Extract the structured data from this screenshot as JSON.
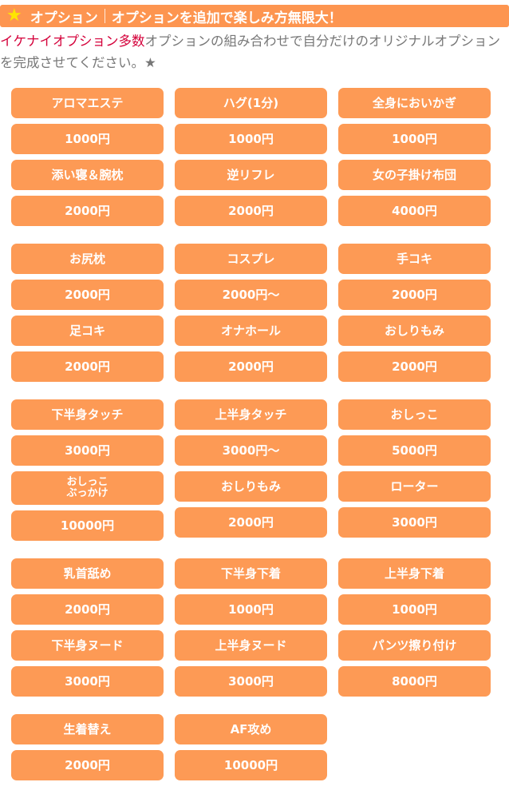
{
  "header": {
    "icon": "star-icon",
    "title": "オプション",
    "subtitle": "オプションを追加で楽しみ方無限大！"
  },
  "intro": {
    "highlight": "イケナイオプション多数",
    "text": "オプションの組み合わせで自分だけのオリジナルオプションを完成させてください。★"
  },
  "groups": [
    [
      [
        {
          "name": "アロマエステ",
          "price": "1000円"
        },
        {
          "name": "添い寝＆腕枕",
          "price": "2000円"
        }
      ],
      [
        {
          "name": "ハグ(1分)",
          "price": "1000円"
        },
        {
          "name": "逆リフレ",
          "price": "2000円"
        }
      ],
      [
        {
          "name": "全身においかぎ",
          "price": "1000円"
        },
        {
          "name": "女の子掛け布団",
          "price": "4000円"
        }
      ]
    ],
    [
      [
        {
          "name": "お尻枕",
          "price": "2000円"
        },
        {
          "name": "足コキ",
          "price": "2000円"
        }
      ],
      [
        {
          "name": "コスプレ",
          "price": "2000円～"
        },
        {
          "name": "オナホール",
          "price": "2000円"
        }
      ],
      [
        {
          "name": "手コキ",
          "price": "2000円"
        },
        {
          "name": "おしりもみ",
          "price": "2000円"
        }
      ]
    ],
    [
      [
        {
          "name": "下半身タッチ",
          "price": "3000円"
        },
        {
          "name": "おしっこ\nぶっかけ",
          "price": "10000円"
        }
      ],
      [
        {
          "name": "上半身タッチ",
          "price": "3000円～"
        },
        {
          "name": "おしりもみ",
          "price": "2000円"
        }
      ],
      [
        {
          "name": "おしっこ",
          "price": "5000円"
        },
        {
          "name": "ローター",
          "price": "3000円"
        }
      ]
    ],
    [
      [
        {
          "name": "乳首舐め",
          "price": "2000円"
        },
        {
          "name": "下半身ヌード",
          "price": "3000円"
        }
      ],
      [
        {
          "name": "下半身下着",
          "price": "1000円"
        },
        {
          "name": "上半身ヌード",
          "price": "3000円"
        }
      ],
      [
        {
          "name": "上半身下着",
          "price": "1000円"
        },
        {
          "name": "パンツ擦り付け",
          "price": "8000円"
        }
      ]
    ],
    [
      [
        {
          "name": "生着替え",
          "price": "2000円"
        }
      ],
      [
        {
          "name": "AF攻め",
          "price": "10000円"
        }
      ],
      []
    ]
  ]
}
